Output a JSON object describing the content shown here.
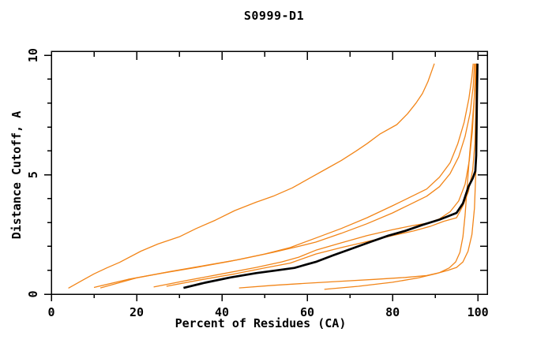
{
  "title": "S0999-D1",
  "chart_data": {
    "type": "line",
    "title": "S0999-D1",
    "xlabel": "Percent of Residues (CA)",
    "ylabel": "Distance Cutoff, A",
    "xlim": [
      0,
      102.2
    ],
    "ylim": [
      0,
      10.17
    ],
    "x_major_ticks": [
      0,
      20,
      40,
      60,
      80,
      100
    ],
    "x_minor_ticks": [
      10,
      30,
      50,
      70,
      90
    ],
    "y_major_ticks": [
      0,
      5,
      10
    ],
    "y_minor_ticks": [
      1,
      2,
      3,
      4,
      6,
      7,
      8,
      9
    ],
    "x_tick_labels": [
      "0",
      "20",
      "40",
      "60",
      "80",
      "100"
    ],
    "y_tick_labels": [
      "0",
      "5",
      "10"
    ],
    "grid": false,
    "legend": "none",
    "colors": {
      "model": "#f28518",
      "reference": "#000000",
      "frame": "#000000"
    },
    "series": [
      {
        "name": "model-1",
        "color": "#f28518",
        "width": 1.3,
        "points": [
          [
            4,
            0.25
          ],
          [
            7,
            0.55
          ],
          [
            10,
            0.85
          ],
          [
            13,
            1.1
          ],
          [
            16,
            1.33
          ],
          [
            21,
            1.8
          ],
          [
            25,
            2.1
          ],
          [
            30,
            2.4
          ],
          [
            34,
            2.75
          ],
          [
            38.5,
            3.1
          ],
          [
            43,
            3.5
          ],
          [
            48,
            3.85
          ],
          [
            52,
            4.1
          ],
          [
            56.5,
            4.45
          ],
          [
            61,
            4.9
          ],
          [
            65,
            5.3
          ],
          [
            68,
            5.6
          ],
          [
            71.5,
            6.0
          ],
          [
            74,
            6.3
          ],
          [
            77,
            6.7
          ],
          [
            81,
            7.1
          ],
          [
            83.5,
            7.55
          ],
          [
            85.5,
            8.0
          ],
          [
            87,
            8.4
          ],
          [
            88.3,
            8.9
          ],
          [
            89.3,
            9.4
          ],
          [
            89.8,
            9.65
          ]
        ]
      },
      {
        "name": "model-2",
        "color": "#f28518",
        "width": 1.3,
        "points": [
          [
            10,
            0.28
          ],
          [
            18,
            0.62
          ],
          [
            26,
            0.88
          ],
          [
            34,
            1.12
          ],
          [
            42,
            1.38
          ],
          [
            50,
            1.68
          ],
          [
            56,
            1.95
          ],
          [
            62,
            2.35
          ],
          [
            68,
            2.75
          ],
          [
            74,
            3.2
          ],
          [
            80,
            3.7
          ],
          [
            84,
            4.05
          ],
          [
            88,
            4.4
          ],
          [
            91,
            4.9
          ],
          [
            93.5,
            5.5
          ],
          [
            95.3,
            6.3
          ],
          [
            96.8,
            7.2
          ],
          [
            97.9,
            8.2
          ],
          [
            98.6,
            9.1
          ],
          [
            98.9,
            9.65
          ]
        ]
      },
      {
        "name": "model-3",
        "color": "#f28518",
        "width": 1.3,
        "points": [
          [
            11.5,
            0.26
          ],
          [
            20,
            0.68
          ],
          [
            28,
            0.95
          ],
          [
            36,
            1.2
          ],
          [
            44,
            1.45
          ],
          [
            52,
            1.75
          ],
          [
            58,
            2.0
          ],
          [
            62,
            2.18
          ],
          [
            68,
            2.55
          ],
          [
            74,
            2.95
          ],
          [
            80,
            3.4
          ],
          [
            84,
            3.75
          ],
          [
            88,
            4.1
          ],
          [
            91,
            4.5
          ],
          [
            93.5,
            5.05
          ],
          [
            95.5,
            5.75
          ],
          [
            97,
            6.6
          ],
          [
            98.2,
            7.6
          ],
          [
            98.9,
            8.7
          ],
          [
            99.2,
            9.65
          ]
        ]
      },
      {
        "name": "model-4",
        "color": "#f28518",
        "width": 1.3,
        "points": [
          [
            24,
            0.3
          ],
          [
            32,
            0.58
          ],
          [
            40,
            0.85
          ],
          [
            48,
            1.12
          ],
          [
            54,
            1.35
          ],
          [
            58,
            1.55
          ],
          [
            62,
            1.84
          ],
          [
            68,
            2.15
          ],
          [
            74,
            2.45
          ],
          [
            80,
            2.7
          ],
          [
            85,
            2.88
          ],
          [
            88,
            2.97
          ],
          [
            91,
            3.15
          ],
          [
            93.5,
            3.45
          ],
          [
            95.5,
            3.9
          ],
          [
            97,
            4.6
          ],
          [
            98,
            5.6
          ],
          [
            98.7,
            6.8
          ],
          [
            99.1,
            8.0
          ],
          [
            99.35,
            9.0
          ],
          [
            99.45,
            9.65
          ]
        ]
      },
      {
        "name": "model-5",
        "color": "#f28518",
        "width": 1.3,
        "points": [
          [
            27,
            0.33
          ],
          [
            35,
            0.6
          ],
          [
            43,
            0.85
          ],
          [
            50,
            1.1
          ],
          [
            56,
            1.3
          ],
          [
            62,
            1.68
          ],
          [
            68,
            1.95
          ],
          [
            74,
            2.2
          ],
          [
            80,
            2.45
          ],
          [
            85,
            2.65
          ],
          [
            89,
            2.85
          ],
          [
            92,
            3.05
          ],
          [
            95,
            3.2
          ],
          [
            96.5,
            3.7
          ],
          [
            97.8,
            4.3
          ],
          [
            98.8,
            5.2
          ],
          [
            99.3,
            6.3
          ],
          [
            99.5,
            7.6
          ],
          [
            99.6,
            8.8
          ],
          [
            99.6,
            9.65
          ]
        ]
      },
      {
        "name": "model-6",
        "color": "#f28518",
        "width": 1.3,
        "points": [
          [
            44,
            0.26
          ],
          [
            52,
            0.37
          ],
          [
            60,
            0.46
          ],
          [
            68,
            0.54
          ],
          [
            76,
            0.62
          ],
          [
            83,
            0.7
          ],
          [
            88,
            0.78
          ],
          [
            91,
            0.9
          ],
          [
            93.3,
            1.1
          ],
          [
            94.8,
            1.35
          ],
          [
            95.8,
            1.75
          ],
          [
            96.5,
            2.4
          ],
          [
            97,
            3.3
          ],
          [
            97.5,
            4.5
          ],
          [
            98,
            5.7
          ],
          [
            98.6,
            7.0
          ],
          [
            99.2,
            8.3
          ],
          [
            99.6,
            9.3
          ],
          [
            99.7,
            9.65
          ]
        ]
      },
      {
        "name": "model-7",
        "color": "#f28518",
        "width": 1.3,
        "points": [
          [
            64,
            0.2
          ],
          [
            72,
            0.33
          ],
          [
            80,
            0.5
          ],
          [
            86,
            0.68
          ],
          [
            90,
            0.85
          ],
          [
            93,
            1.0
          ],
          [
            95,
            1.12
          ],
          [
            96.5,
            1.35
          ],
          [
            97.7,
            1.8
          ],
          [
            98.6,
            2.5
          ],
          [
            99.2,
            3.6
          ],
          [
            99.5,
            5.0
          ],
          [
            99.7,
            6.5
          ],
          [
            99.8,
            8.0
          ],
          [
            99.8,
            9.65
          ]
        ]
      },
      {
        "name": "reference-black",
        "color": "#000000",
        "width": 2.7,
        "points": [
          [
            31,
            0.26
          ],
          [
            36,
            0.48
          ],
          [
            42,
            0.7
          ],
          [
            48,
            0.88
          ],
          [
            53,
            1.0
          ],
          [
            57,
            1.1
          ],
          [
            60,
            1.25
          ],
          [
            62,
            1.35
          ],
          [
            66,
            1.62
          ],
          [
            70,
            1.88
          ],
          [
            75,
            2.2
          ],
          [
            79,
            2.45
          ],
          [
            83,
            2.65
          ],
          [
            87,
            2.9
          ],
          [
            91,
            3.12
          ],
          [
            95,
            3.4
          ],
          [
            96.5,
            3.8
          ],
          [
            97.8,
            4.5
          ],
          [
            98.8,
            4.85
          ],
          [
            99.4,
            5.15
          ],
          [
            99.6,
            5.8
          ],
          [
            99.7,
            7.0
          ],
          [
            99.8,
            8.4
          ],
          [
            99.9,
            9.65
          ]
        ]
      }
    ]
  }
}
